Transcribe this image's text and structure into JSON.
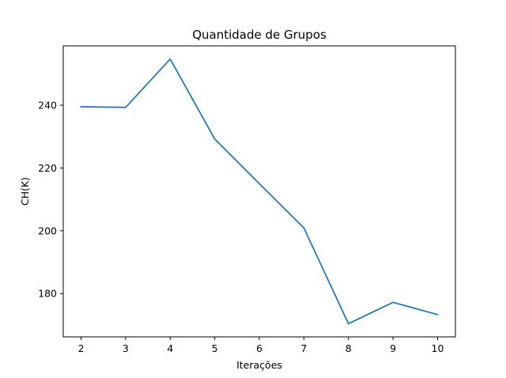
{
  "chart_data": {
    "type": "line",
    "title": "Quantidade de Grupos",
    "xlabel": "Iterações",
    "ylabel": "CH(K)",
    "x": [
      2,
      3,
      4,
      5,
      6,
      7,
      8,
      9,
      10
    ],
    "series": [
      {
        "color": "#1f77b4",
        "values": [
          239.5,
          239.3,
          254.7,
          229.2,
          215.0,
          200.9,
          170.4,
          177.2,
          173.3
        ]
      }
    ],
    "xticks": [
      2,
      3,
      4,
      5,
      6,
      7,
      8,
      9,
      10
    ],
    "yticks": [
      180,
      200,
      220,
      240
    ],
    "xlim": [
      1.6,
      10.4
    ],
    "ylim": [
      166.2,
      258.9
    ],
    "grid": false,
    "legend": "none"
  }
}
